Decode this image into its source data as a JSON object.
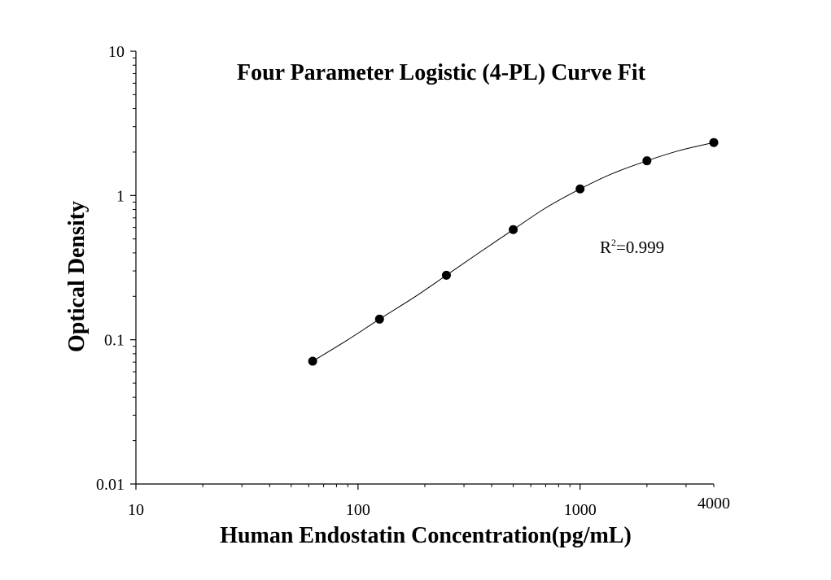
{
  "chart_data": {
    "type": "scatter",
    "title": "Four Parameter Logistic (4-PL) Curve Fit",
    "xlabel": "Human Endostatin Concentration(pg/mL)",
    "ylabel": "Optical Density",
    "x_scale": "log",
    "y_scale": "log",
    "xlim": [
      10,
      4000
    ],
    "ylim": [
      0.01,
      10
    ],
    "x_ticks": [
      {
        "value": 10,
        "label": "10"
      },
      {
        "value": 100,
        "label": "100"
      },
      {
        "value": 1000,
        "label": "1000"
      },
      {
        "value": 4000,
        "label": "4000"
      }
    ],
    "y_ticks": [
      {
        "value": 0.01,
        "label": "0.01"
      },
      {
        "value": 0.1,
        "label": "0.1"
      },
      {
        "value": 1,
        "label": "1"
      },
      {
        "value": 10,
        "label": "10"
      }
    ],
    "grid": false,
    "series": [
      {
        "x": [
          62.5,
          125,
          250,
          500,
          1000,
          2000,
          4000
        ],
        "y": [
          0.071,
          0.139,
          0.28,
          0.58,
          1.11,
          1.74,
          2.33
        ]
      }
    ],
    "fit_curve": {
      "model": "4PL",
      "points": [
        [
          62.5,
          0.071
        ],
        [
          90,
          0.1
        ],
        [
          125,
          0.139
        ],
        [
          180,
          0.198
        ],
        [
          250,
          0.28
        ],
        [
          350,
          0.4
        ],
        [
          500,
          0.58
        ],
        [
          700,
          0.82
        ],
        [
          1000,
          1.11
        ],
        [
          1400,
          1.42
        ],
        [
          2000,
          1.74
        ],
        [
          2800,
          2.05
        ],
        [
          4000,
          2.33
        ]
      ]
    },
    "annotation": {
      "base": "R",
      "sup": "2",
      "rest": "=0.999"
    }
  }
}
